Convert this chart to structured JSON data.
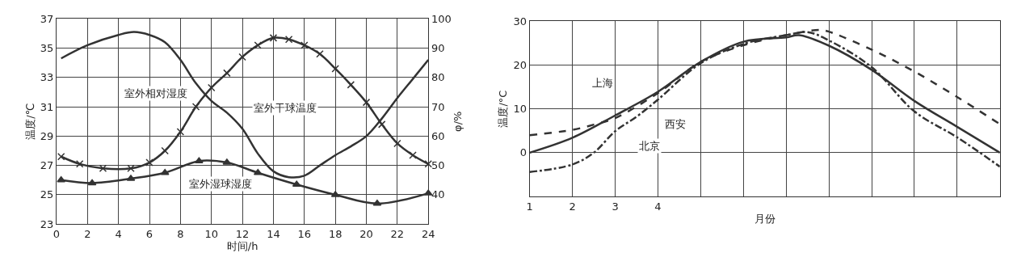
{
  "chart_data": [
    {
      "type": "line",
      "xlabel": "时间/h",
      "ylabel": "温度/℃",
      "y2label": "φ/%",
      "xlim": [
        0,
        24
      ],
      "xticks": [
        0,
        2,
        4,
        6,
        8,
        10,
        12,
        14,
        16,
        18,
        20,
        22,
        24
      ],
      "ylim": [
        23,
        37
      ],
      "yticks": [
        23,
        25,
        27,
        29,
        31,
        33,
        35,
        37
      ],
      "y2lim": [
        30,
        100
      ],
      "y2ticks": [
        40,
        50,
        60,
        70,
        80,
        90,
        100
      ],
      "grid": true,
      "series": [
        {
          "axis": "y2",
          "color": "#333333",
          "marker": "none",
          "x": [
            0.3,
            2,
            4,
            5,
            6,
            7,
            8,
            9,
            10,
            11,
            12,
            13,
            14,
            15,
            16,
            17,
            18,
            19,
            20,
            21,
            22,
            23,
            24
          ],
          "values": [
            86.5,
            91,
            94.5,
            95.5,
            94.5,
            92,
            86,
            78,
            72,
            68,
            62.5,
            54,
            48,
            46,
            46.5,
            50,
            53.5,
            56.5,
            60,
            66,
            73,
            79.5,
            86
          ]
        },
        {
          "color": "#333333",
          "marker": "cross",
          "x": [
            0.3,
            1.5,
            3,
            4.8,
            6,
            7,
            8,
            9,
            10,
            11,
            12,
            13,
            14,
            15,
            16,
            17,
            18,
            19,
            20,
            21,
            22,
            23,
            24
          ],
          "values": [
            27.6,
            27.1,
            26.8,
            26.8,
            27.2,
            28.0,
            29.3,
            31.0,
            32.3,
            33.3,
            34.4,
            35.2,
            35.7,
            35.6,
            35.2,
            34.6,
            33.6,
            32.5,
            31.3,
            29.8,
            28.5,
            27.7,
            27.1
          ]
        },
        {
          "color": "#333333",
          "marker": "triangle",
          "x": [
            0.3,
            2.3,
            4.8,
            7,
            9.2,
            11,
            13,
            15.5,
            18,
            20.7,
            24
          ],
          "values": [
            26.0,
            25.8,
            26.1,
            26.5,
            27.3,
            27.2,
            26.5,
            25.7,
            25.0,
            24.4,
            25.1
          ]
        }
      ],
      "annotations": [
        "室外相对湿度",
        "室外干球温度",
        "室外湿球湿度"
      ]
    },
    {
      "type": "line",
      "xlabel": "月份",
      "ylabel": "温度/°C",
      "xlim": [
        1,
        12
      ],
      "xticks": [
        1,
        2,
        3,
        4,
        {
          "value": 5,
          "label": null
        },
        {
          "value": 6,
          "label": null
        },
        {
          "value": 7,
          "label": null
        },
        {
          "value": 8,
          "label": null
        },
        {
          "value": 9,
          "label": null
        },
        {
          "value": 10,
          "label": null
        },
        {
          "value": 11,
          "label": null
        },
        {
          "value": 12,
          "label": null
        }
      ],
      "ylim": [
        -10,
        30
      ],
      "yticks": [
        {
          "value": -10,
          "label": null
        },
        0,
        10,
        20,
        30
      ],
      "grid": true,
      "series": [
        {
          "color": "#333333",
          "line_style": "dashed",
          "x": [
            1,
            2,
            2.5,
            3,
            4,
            5,
            6,
            7,
            7.8,
            8,
            9,
            10,
            11,
            12
          ],
          "values": [
            4.0,
            5.2,
            6.4,
            7.9,
            13.6,
            20.7,
            24.5,
            26.8,
            28.0,
            27.6,
            23.5,
            18.5,
            12.7,
            6.5
          ]
        },
        {
          "color": "#333333",
          "line_style": "solid",
          "x": [
            1,
            2,
            3,
            4,
            5,
            6,
            7,
            7.3,
            8,
            9,
            10,
            11,
            12
          ],
          "values": [
            0,
            3.4,
            8.5,
            13.9,
            20.7,
            25.3,
            26.3,
            26.8,
            24.4,
            18.9,
            11.8,
            5.9,
            0
          ]
        },
        {
          "color": "#333333",
          "line_style": "dashdot",
          "x": [
            1,
            2,
            2.5,
            3,
            3.5,
            4,
            5,
            6,
            7,
            7.5,
            8,
            9,
            10,
            11,
            12
          ],
          "values": [
            -4.4,
            -2.7,
            0,
            4.9,
            8.2,
            12.1,
            20.4,
            24.8,
            26.8,
            27.5,
            25.6,
            19.5,
            9.4,
            3.5,
            -3.2
          ]
        }
      ],
      "annotations": [
        {
          "text": "上海",
          "x": 2.7,
          "y": 16
        },
        {
          "text": "西安",
          "x": 4.4,
          "y": 6.5
        },
        {
          "text": "北京",
          "x": 3.8,
          "y": 1.5
        }
      ]
    }
  ]
}
